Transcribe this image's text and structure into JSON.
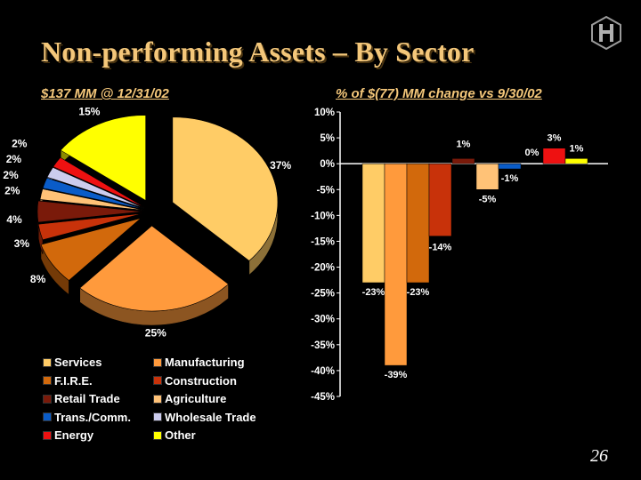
{
  "title": "Non-performing Assets – By Sector",
  "slide_number": "26",
  "colors": {
    "title": "#f4c77a",
    "background": "#000000"
  },
  "chart_data": [
    {
      "type": "pie",
      "subtitle": "$137 MM @ 12/31/02",
      "slices": [
        {
          "name": "Services",
          "value": 37,
          "label": "37%",
          "color": "#ffcc66"
        },
        {
          "name": "Manufacturing",
          "value": 25,
          "label": "25%",
          "color": "#ff9a3c"
        },
        {
          "name": "F.I.R.E.",
          "value": 8,
          "label": "8%",
          "color": "#d2690c"
        },
        {
          "name": "Construction",
          "value": 3,
          "label": "3%",
          "color": "#c8320a"
        },
        {
          "name": "Retail Trade",
          "value": 4,
          "label": "4%",
          "color": "#7a1a0a"
        },
        {
          "name": "Agriculture",
          "value": 2,
          "label": "2%",
          "color": "#ffc277"
        },
        {
          "name": "Trans./Comm.",
          "value": 2,
          "label": "2%",
          "color": "#0a5cc8"
        },
        {
          "name": "Wholesale Trade",
          "value": 2,
          "label": "2%",
          "color": "#ccccee"
        },
        {
          "name": "Energy",
          "value": 2,
          "label": "2%",
          "color": "#ee1111"
        },
        {
          "name": "Other",
          "value": 15,
          "label": "15%",
          "color": "#ffff00"
        }
      ],
      "legend": [
        "Services",
        "Manufacturing",
        "F.I.R.E.",
        "Construction",
        "Retail Trade",
        "Agriculture",
        "Trans./Comm.",
        "Wholesale Trade",
        "Energy",
        "Other"
      ]
    },
    {
      "type": "bar",
      "subtitle": "% of $(77) MM change vs 9/30/02",
      "ylim": [
        -45,
        10
      ],
      "yticks": [
        "10%",
        "5%",
        "0%",
        "-5%",
        "-10%",
        "-15%",
        "-20%",
        "-25%",
        "-30%",
        "-35%",
        "-40%",
        "-45%"
      ],
      "grid": false,
      "series": [
        {
          "name": "Services",
          "value": -23,
          "label": "-23%",
          "color": "#ffcc66"
        },
        {
          "name": "Manufacturing",
          "value": -39,
          "label": "-39%",
          "color": "#ff9a3c"
        },
        {
          "name": "F.I.R.E.",
          "value": -23,
          "label": "-23%",
          "color": "#d2690c"
        },
        {
          "name": "Construction",
          "value": -14,
          "label": "-14%",
          "color": "#c8320a"
        },
        {
          "name": "Retail Trade",
          "value": 1,
          "label": "1%",
          "color": "#7a1a0a"
        },
        {
          "name": "Agriculture",
          "value": -5,
          "label": "-5%",
          "color": "#ffc277"
        },
        {
          "name": "Trans./Comm.",
          "value": -1,
          "label": "-1%",
          "color": "#0a5cc8"
        },
        {
          "name": "Wholesale Trade",
          "value": 0,
          "label": "0%",
          "color": "#ccccee"
        },
        {
          "name": "Energy",
          "value": 3,
          "label": "3%",
          "color": "#ee1111"
        },
        {
          "name": "Other",
          "value": 1,
          "label": "1%",
          "color": "#ffff00"
        }
      ]
    }
  ]
}
